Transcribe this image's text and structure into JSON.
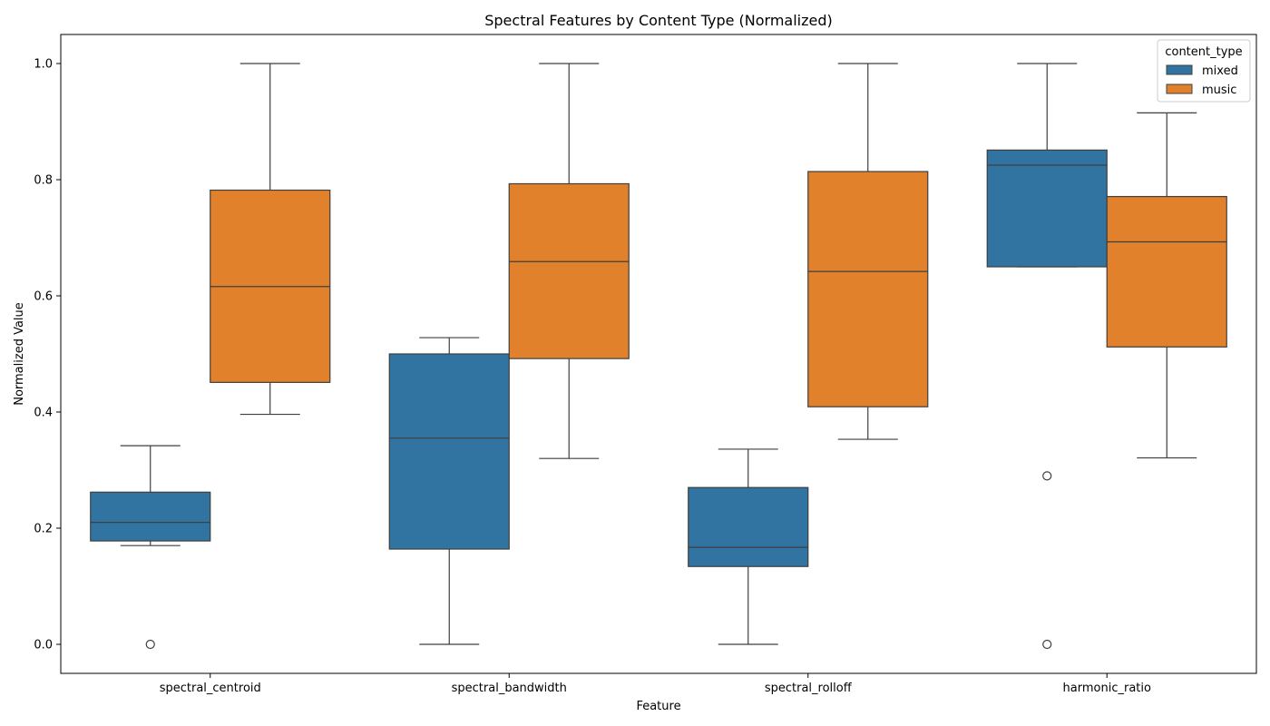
{
  "chart_data": {
    "type": "box",
    "title": "Spectral Features by Content Type (Normalized)",
    "xlabel": "Feature",
    "ylabel": "Normalized Value",
    "ylim": [
      -0.05,
      1.05
    ],
    "yticks": [
      "0.0",
      "0.2",
      "0.4",
      "0.6",
      "0.8",
      "1.0"
    ],
    "categories": [
      "spectral_centroid",
      "spectral_bandwidth",
      "spectral_rolloff",
      "harmonic_ratio"
    ],
    "grid": false,
    "legend": {
      "title": "content_type",
      "position": "top-right"
    },
    "series": [
      {
        "name": "mixed",
        "color": "#3274a1",
        "boxes": [
          {
            "whisker_low": 0.17,
            "q1": 0.178,
            "median": 0.21,
            "q3": 0.262,
            "whisker_high": 0.342,
            "outliers": [
              0.0
            ]
          },
          {
            "whisker_low": 0.0,
            "q1": 0.164,
            "median": 0.355,
            "q3": 0.5,
            "whisker_high": 0.528,
            "outliers": []
          },
          {
            "whisker_low": 0.0,
            "q1": 0.134,
            "median": 0.167,
            "q3": 0.27,
            "whisker_high": 0.336,
            "outliers": []
          },
          {
            "whisker_low": 0.65,
            "q1": 0.65,
            "median": 0.825,
            "q3": 0.851,
            "whisker_high": 1.0,
            "outliers": [
              0.29,
              0.0
            ]
          }
        ]
      },
      {
        "name": "music",
        "color": "#e1812c",
        "boxes": [
          {
            "whisker_low": 0.396,
            "q1": 0.451,
            "median": 0.616,
            "q3": 0.782,
            "whisker_high": 1.0,
            "outliers": []
          },
          {
            "whisker_low": 0.32,
            "q1": 0.492,
            "median": 0.659,
            "q3": 0.793,
            "whisker_high": 1.0,
            "outliers": []
          },
          {
            "whisker_low": 0.353,
            "q1": 0.409,
            "median": 0.642,
            "q3": 0.814,
            "whisker_high": 1.0,
            "outliers": []
          },
          {
            "whisker_low": 0.321,
            "q1": 0.512,
            "median": 0.693,
            "q3": 0.771,
            "whisker_high": 0.915,
            "outliers": []
          }
        ]
      }
    ]
  }
}
